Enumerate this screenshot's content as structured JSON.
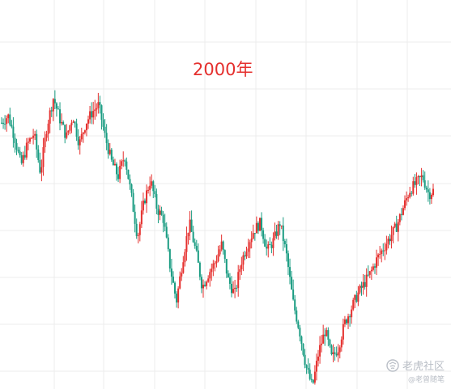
{
  "chart_data": {
    "type": "candlestick",
    "annotation": "2000年",
    "grid": true,
    "colors": {
      "up": "#e5302e",
      "down": "#1a9c82",
      "grid": "#ececec",
      "annotation": "#e5302e"
    },
    "y_range": [
      0,
      100
    ],
    "x_range": [
      0,
      100
    ],
    "price_path": [
      [
        0.0,
        72
      ],
      [
        1.5,
        74
      ],
      [
        3,
        68
      ],
      [
        4.5,
        60
      ],
      [
        6,
        66
      ],
      [
        7.5,
        69
      ],
      [
        9,
        58
      ],
      [
        10.5,
        71
      ],
      [
        12,
        79
      ],
      [
        13.5,
        73
      ],
      [
        15,
        68
      ],
      [
        16.5,
        74
      ],
      [
        18,
        66
      ],
      [
        19.5,
        72
      ],
      [
        21,
        75
      ],
      [
        22.5,
        77
      ],
      [
        24,
        68
      ],
      [
        25.5,
        61
      ],
      [
        27,
        57
      ],
      [
        28.5,
        63
      ],
      [
        30,
        52
      ],
      [
        31.5,
        40
      ],
      [
        33,
        50
      ],
      [
        34.5,
        56
      ],
      [
        36,
        48
      ],
      [
        37.5,
        45
      ],
      [
        39,
        32
      ],
      [
        40.5,
        22
      ],
      [
        42,
        34
      ],
      [
        43.5,
        44
      ],
      [
        45,
        36
      ],
      [
        46.5,
        26
      ],
      [
        48,
        30
      ],
      [
        49.5,
        33
      ],
      [
        51,
        38
      ],
      [
        52.5,
        28
      ],
      [
        54,
        24
      ],
      [
        55.5,
        33
      ],
      [
        57,
        38
      ],
      [
        58.5,
        42
      ],
      [
        60,
        44
      ],
      [
        61.5,
        36
      ],
      [
        63,
        39
      ],
      [
        64.5,
        44
      ],
      [
        66,
        35
      ],
      [
        67.5,
        22
      ],
      [
        69,
        14
      ],
      [
        70.5,
        4
      ],
      [
        72,
        -2
      ],
      [
        73.5,
        8
      ],
      [
        75,
        14
      ],
      [
        76.5,
        6
      ],
      [
        78,
        9
      ],
      [
        79.5,
        16
      ],
      [
        81,
        20
      ],
      [
        82.5,
        24
      ],
      [
        84,
        27
      ],
      [
        85.5,
        30
      ],
      [
        87,
        34
      ],
      [
        88.5,
        37
      ],
      [
        90,
        40
      ],
      [
        91.5,
        43
      ],
      [
        93,
        48
      ],
      [
        94.5,
        53
      ],
      [
        96,
        55
      ],
      [
        97.5,
        57
      ],
      [
        99,
        52
      ],
      [
        100,
        53
      ]
    ]
  },
  "watermark": {
    "brand": "老虎社区",
    "handle": "@老曾随笔",
    "logo_icon": "tiger-logo-icon"
  }
}
